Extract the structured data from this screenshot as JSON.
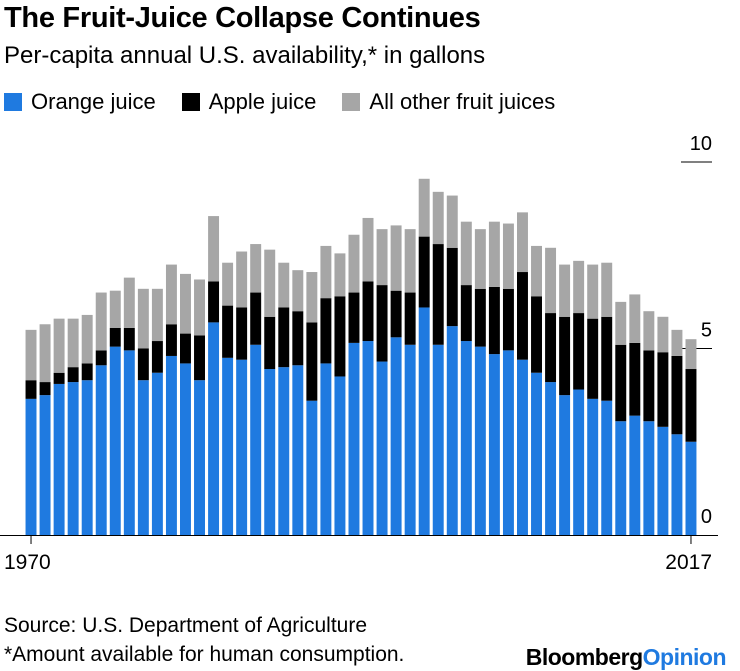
{
  "header": {
    "title": "The Fruit-Juice Collapse Continues",
    "subtitle": "Per-capita annual U.S. availability,* in gallons"
  },
  "footer": {
    "source": "Source: U.S. Department of Agriculture",
    "footnote": "*Amount available for human consumption.",
    "brand_main": "Bloomberg",
    "brand_sub": "Opinion"
  },
  "chart_data": {
    "type": "bar",
    "stacked": true,
    "title": "The Fruit-Juice Collapse Continues",
    "subtitle": "Per-capita annual U.S. availability,* in gallons",
    "xlabel": "",
    "ylabel": "gallons",
    "ylim": [
      0,
      10
    ],
    "yticks": [
      "0",
      "5",
      "10"
    ],
    "xtick_labels": [
      "1970",
      "2017"
    ],
    "legend_position": "top-left",
    "categories": [
      "1970",
      "1971",
      "1972",
      "1973",
      "1974",
      "1975",
      "1976",
      "1977",
      "1978",
      "1979",
      "1980",
      "1981",
      "1982",
      "1983",
      "1984",
      "1985",
      "1986",
      "1987",
      "1988",
      "1989",
      "1990",
      "1991",
      "1992",
      "1993",
      "1994",
      "1995",
      "1996",
      "1997",
      "1998",
      "1999",
      "2000",
      "2001",
      "2002",
      "2003",
      "2004",
      "2005",
      "2006",
      "2007",
      "2008",
      "2009",
      "2010",
      "2011",
      "2012",
      "2013",
      "2014",
      "2015",
      "2016",
      "2017"
    ],
    "series": [
      {
        "name": "Orange juice",
        "color": "#1f7ae0",
        "values": [
          3.65,
          3.75,
          4.05,
          4.1,
          4.15,
          4.55,
          5.05,
          4.95,
          4.15,
          4.35,
          4.8,
          4.6,
          4.15,
          5.7,
          4.75,
          4.7,
          5.1,
          4.45,
          4.5,
          4.55,
          3.6,
          4.6,
          4.25,
          5.15,
          5.2,
          4.65,
          5.3,
          5.1,
          6.1,
          5.1,
          5.6,
          5.2,
          5.05,
          4.85,
          4.95,
          4.7,
          4.35,
          4.1,
          3.75,
          3.9,
          3.65,
          3.6,
          3.05,
          3.2,
          3.05,
          2.9,
          2.7,
          2.5
        ]
      },
      {
        "name": "Apple juice",
        "color": "#000000",
        "values": [
          0.5,
          0.35,
          0.3,
          0.4,
          0.45,
          0.4,
          0.5,
          0.6,
          0.85,
          0.85,
          0.85,
          0.8,
          1.2,
          1.1,
          1.4,
          1.4,
          1.4,
          1.4,
          1.6,
          1.45,
          2.1,
          1.75,
          2.15,
          1.35,
          1.6,
          2.05,
          1.25,
          1.4,
          1.9,
          2.7,
          2.1,
          1.5,
          1.55,
          1.8,
          1.65,
          2.35,
          2.05,
          1.85,
          2.1,
          2.05,
          2.15,
          2.25,
          2.05,
          1.95,
          1.9,
          2.0,
          2.1,
          1.95
        ]
      },
      {
        "name": "All other fruit juices",
        "color": "#a6a6a6",
        "values": [
          1.35,
          1.55,
          1.45,
          1.3,
          1.3,
          1.55,
          1.0,
          1.35,
          1.6,
          1.4,
          1.6,
          1.6,
          1.5,
          1.75,
          1.15,
          1.5,
          1.3,
          1.8,
          1.2,
          1.1,
          1.35,
          1.4,
          1.15,
          1.55,
          1.7,
          1.5,
          1.75,
          1.7,
          1.55,
          1.4,
          1.4,
          1.7,
          1.6,
          1.75,
          1.75,
          1.6,
          1.35,
          1.75,
          1.4,
          1.4,
          1.45,
          1.45,
          1.15,
          1.3,
          1.05,
          0.95,
          0.7,
          0.8
        ]
      }
    ]
  }
}
